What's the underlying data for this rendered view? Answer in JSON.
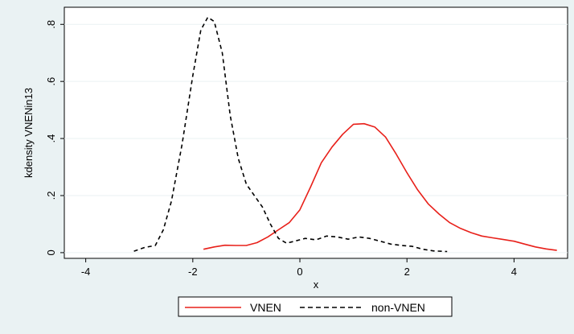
{
  "chart_data": {
    "type": "line",
    "title": "",
    "xlabel": "x",
    "ylabel": "kdensity VNENin13",
    "xlim": [
      -4.4,
      5.0
    ],
    "ylim": [
      -0.02,
      0.86
    ],
    "x_ticks": [
      -4,
      -2,
      0,
      2,
      4
    ],
    "x_tick_labels": [
      "-4",
      "-2",
      "0",
      "2",
      "4"
    ],
    "y_ticks": [
      0,
      0.2,
      0.4,
      0.6,
      0.8
    ],
    "y_tick_labels": [
      "0",
      ".2",
      ".4",
      ".6",
      ".8"
    ],
    "grid": "horizontal",
    "legend_position": "bottom",
    "series": [
      {
        "name": "VNEN",
        "color": "#e8201a",
        "dash": "solid",
        "points": [
          [
            -1.8,
            0.012
          ],
          [
            -1.6,
            0.02
          ],
          [
            -1.4,
            0.026
          ],
          [
            -1.2,
            0.025
          ],
          [
            -1.0,
            0.025
          ],
          [
            -0.8,
            0.035
          ],
          [
            -0.6,
            0.055
          ],
          [
            -0.4,
            0.08
          ],
          [
            -0.2,
            0.105
          ],
          [
            0.0,
            0.15
          ],
          [
            0.2,
            0.23
          ],
          [
            0.4,
            0.315
          ],
          [
            0.6,
            0.37
          ],
          [
            0.8,
            0.415
          ],
          [
            1.0,
            0.45
          ],
          [
            1.2,
            0.452
          ],
          [
            1.4,
            0.44
          ],
          [
            1.6,
            0.405
          ],
          [
            1.8,
            0.345
          ],
          [
            2.0,
            0.28
          ],
          [
            2.2,
            0.22
          ],
          [
            2.4,
            0.17
          ],
          [
            2.6,
            0.135
          ],
          [
            2.8,
            0.105
          ],
          [
            3.0,
            0.085
          ],
          [
            3.2,
            0.07
          ],
          [
            3.4,
            0.058
          ],
          [
            3.6,
            0.052
          ],
          [
            3.8,
            0.046
          ],
          [
            4.0,
            0.04
          ],
          [
            4.2,
            0.03
          ],
          [
            4.4,
            0.02
          ],
          [
            4.6,
            0.013
          ],
          [
            4.8,
            0.008
          ]
        ]
      },
      {
        "name": "non-VNEN",
        "color": "#000000",
        "dash": "dashed",
        "points": [
          [
            -3.1,
            0.005
          ],
          [
            -2.9,
            0.018
          ],
          [
            -2.7,
            0.025
          ],
          [
            -2.55,
            0.08
          ],
          [
            -2.4,
            0.18
          ],
          [
            -2.2,
            0.38
          ],
          [
            -2.0,
            0.62
          ],
          [
            -1.85,
            0.78
          ],
          [
            -1.72,
            0.825
          ],
          [
            -1.6,
            0.81
          ],
          [
            -1.45,
            0.7
          ],
          [
            -1.3,
            0.48
          ],
          [
            -1.15,
            0.33
          ],
          [
            -1.0,
            0.24
          ],
          [
            -0.85,
            0.2
          ],
          [
            -0.7,
            0.16
          ],
          [
            -0.55,
            0.1
          ],
          [
            -0.4,
            0.05
          ],
          [
            -0.25,
            0.033
          ],
          [
            -0.1,
            0.04
          ],
          [
            0.1,
            0.05
          ],
          [
            0.3,
            0.045
          ],
          [
            0.5,
            0.058
          ],
          [
            0.7,
            0.055
          ],
          [
            0.9,
            0.047
          ],
          [
            1.1,
            0.055
          ],
          [
            1.3,
            0.05
          ],
          [
            1.5,
            0.04
          ],
          [
            1.7,
            0.03
          ],
          [
            1.9,
            0.025
          ],
          [
            2.1,
            0.022
          ],
          [
            2.3,
            0.012
          ],
          [
            2.5,
            0.006
          ],
          [
            2.75,
            0.004
          ]
        ]
      }
    ]
  }
}
